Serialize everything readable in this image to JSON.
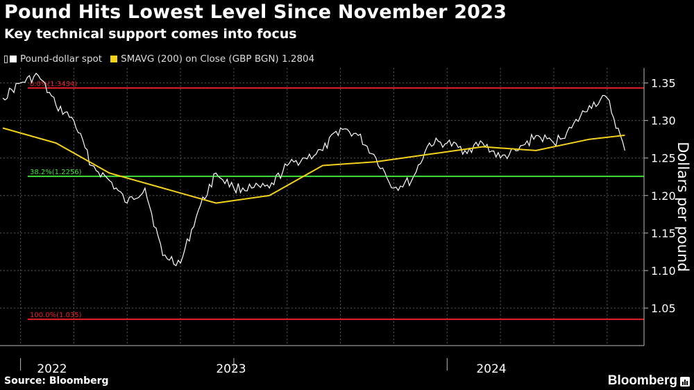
{
  "header": {
    "title": "Pound Hits Lowest Level Since November 2023",
    "subtitle": "Key technical support comes into focus"
  },
  "legend": {
    "series_1": "Pound-dollar spot",
    "series_2": "SMAVG (200)  on Close (GBP BGN) 1.2804"
  },
  "footer": {
    "source": "Source: Bloomberg",
    "brand": "Bloomberg"
  },
  "colors": {
    "spot": "#ffffff",
    "smavg": "#f2d21b",
    "resistance": "#e8202a",
    "support": "#3fe23a",
    "grid": "#5a5a5a"
  },
  "chart_data": {
    "type": "line",
    "ylabel": "Dollars per pound",
    "ylim": [
      1.0,
      1.37
    ],
    "y_ticks": [
      "1.05",
      "1.10",
      "1.15",
      "1.20",
      "1.25",
      "1.30",
      "1.35"
    ],
    "x_ticks": [
      "2022",
      "2023",
      "2024"
    ],
    "x_range": [
      "2021-12",
      "2024-12"
    ],
    "levels": [
      {
        "label": "0.0%(1.3434)",
        "value": 1.3434,
        "color": "#e8202a"
      },
      {
        "label": "38.2%(1.2256)",
        "value": 1.2256,
        "color": "#3fe23a"
      },
      {
        "label": "100.0%(1.035)",
        "value": 1.035,
        "color": "#e8202a"
      }
    ],
    "series": [
      {
        "name": "Pound-dollar spot",
        "x": [
          "2021-12",
          "2022-01",
          "2022-02",
          "2022-03",
          "2022-04",
          "2022-05",
          "2022-06",
          "2022-07",
          "2022-08",
          "2022-09",
          "2022-10",
          "2022-11",
          "2022-12",
          "2023-01",
          "2023-02",
          "2023-03",
          "2023-04",
          "2023-05",
          "2023-06",
          "2023-07",
          "2023-08",
          "2023-09",
          "2023-10",
          "2023-11",
          "2023-12",
          "2024-01",
          "2024-02",
          "2024-03",
          "2024-04",
          "2024-05",
          "2024-06",
          "2024-07",
          "2024-08",
          "2024-09",
          "2024-10",
          "2024-11"
        ],
        "values": [
          1.33,
          1.35,
          1.36,
          1.32,
          1.3,
          1.24,
          1.22,
          1.19,
          1.21,
          1.12,
          1.11,
          1.18,
          1.23,
          1.21,
          1.21,
          1.21,
          1.24,
          1.25,
          1.26,
          1.29,
          1.28,
          1.25,
          1.21,
          1.22,
          1.27,
          1.27,
          1.26,
          1.27,
          1.25,
          1.26,
          1.28,
          1.27,
          1.29,
          1.32,
          1.33,
          1.26
        ]
      },
      {
        "name": "SMAVG (200)  on Close (GBP BGN) 1.2804",
        "x": [
          "2021-12",
          "2022-03",
          "2022-06",
          "2022-09",
          "2022-12",
          "2023-03",
          "2023-06",
          "2023-09",
          "2023-12",
          "2024-03",
          "2024-06",
          "2024-09",
          "2024-11"
        ],
        "values": [
          1.29,
          1.27,
          1.23,
          1.21,
          1.19,
          1.2,
          1.24,
          1.245,
          1.255,
          1.265,
          1.26,
          1.275,
          1.2804
        ]
      }
    ]
  }
}
